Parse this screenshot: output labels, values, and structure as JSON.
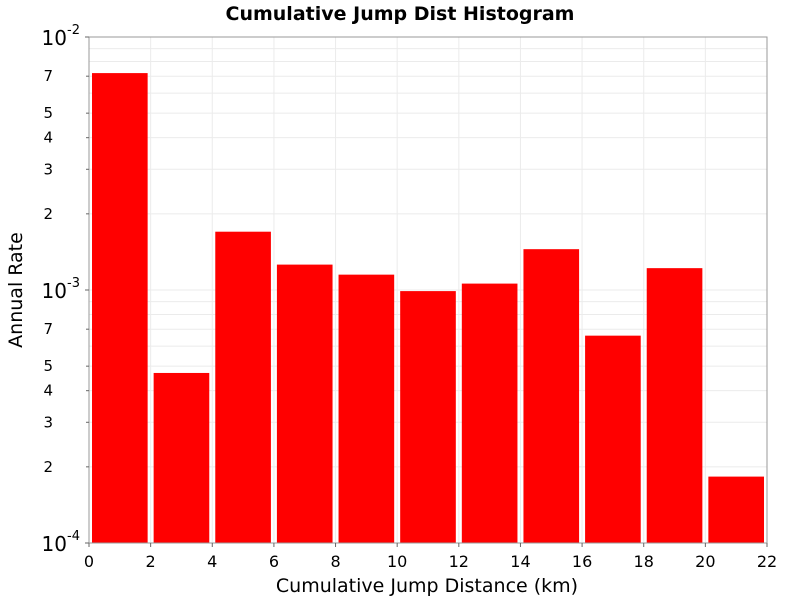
{
  "chart_data": {
    "type": "bar",
    "title": "Cumulative Jump Dist Histogram",
    "xlabel": "Cumulative Jump Distance (km)",
    "ylabel": "Annual Rate",
    "xlim": [
      0,
      22
    ],
    "ylim": [
      0.0001,
      0.01
    ],
    "y_scale": "log",
    "grid": true,
    "bar_color": "#ff0000",
    "bin_width": 2,
    "bin_starts": [
      0,
      2,
      4,
      6,
      8,
      10,
      12,
      14,
      16,
      18,
      20
    ],
    "values": [
      0.0072,
      0.00047,
      0.0017,
      0.00126,
      0.00115,
      0.00099,
      0.00106,
      0.00145,
      0.00066,
      0.00122,
      0.000183
    ],
    "x_ticks": [
      "0",
      "2",
      "4",
      "6",
      "8",
      "10",
      "12",
      "14",
      "16",
      "18",
      "20",
      "22"
    ],
    "y_major_ticks": [
      {
        "base": "10",
        "exp": "-4",
        "value": 0.0001
      },
      {
        "base": "10",
        "exp": "-3",
        "value": 0.001
      },
      {
        "base": "10",
        "exp": "-2",
        "value": 0.01
      }
    ],
    "y_minor_tick_labels": [
      "2",
      "3",
      "4",
      "5",
      "7"
    ]
  }
}
